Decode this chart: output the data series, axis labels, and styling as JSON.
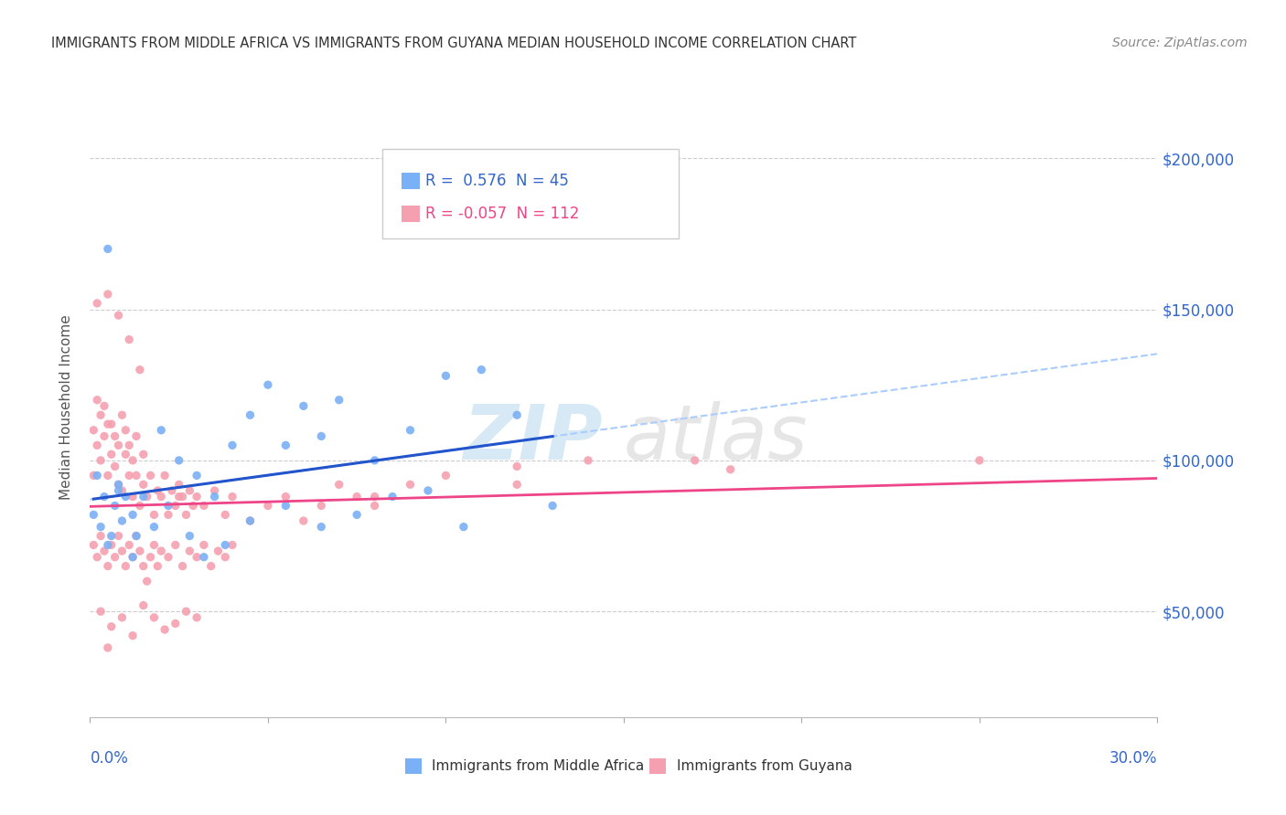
{
  "title": "IMMIGRANTS FROM MIDDLE AFRICA VS IMMIGRANTS FROM GUYANA MEDIAN HOUSEHOLD INCOME CORRELATION CHART",
  "source": "Source: ZipAtlas.com",
  "ylabel": "Median Household Income",
  "xlim": [
    0.0,
    0.3
  ],
  "ylim": [
    15000,
    220000
  ],
  "yticks": [
    50000,
    100000,
    150000,
    200000
  ],
  "ytick_labels": [
    "$50,000",
    "$100,000",
    "$150,000",
    "$200,000"
  ],
  "xtick_left_label": "0.0%",
  "xtick_right_label": "30.0%",
  "blue_R": 0.576,
  "blue_N": 45,
  "pink_R": -0.057,
  "pink_N": 112,
  "blue_label": "Immigrants from Middle Africa",
  "pink_label": "Immigrants from Guyana",
  "blue_scatter_color": "#7ab0f5",
  "pink_scatter_color": "#f5a0b0",
  "blue_line_color": "#2255cc",
  "blue_dash_color": "#aaccff",
  "pink_line_color": "#ee4488",
  "title_color": "#333333",
  "source_color": "#888888",
  "axis_color": "#3366cc",
  "grid_color": "#cccccc",
  "watermark_zip_color": "#b8d8f0",
  "watermark_atlas_color": "#c8c8c8",
  "legend_border_color": "#cccccc",
  "background_color": "#ffffff",
  "blue_scatter_x": [
    0.001,
    0.002,
    0.003,
    0.004,
    0.005,
    0.006,
    0.007,
    0.008,
    0.009,
    0.01,
    0.012,
    0.013,
    0.015,
    0.02,
    0.025,
    0.03,
    0.035,
    0.04,
    0.045,
    0.05,
    0.055,
    0.06,
    0.065,
    0.07,
    0.08,
    0.09,
    0.1,
    0.11,
    0.12,
    0.13,
    0.005,
    0.008,
    0.012,
    0.018,
    0.022,
    0.028,
    0.032,
    0.038,
    0.045,
    0.055,
    0.065,
    0.075,
    0.085,
    0.095,
    0.105
  ],
  "blue_scatter_y": [
    82000,
    95000,
    78000,
    88000,
    170000,
    75000,
    85000,
    92000,
    80000,
    88000,
    82000,
    75000,
    88000,
    110000,
    100000,
    95000,
    88000,
    105000,
    115000,
    125000,
    105000,
    118000,
    108000,
    120000,
    100000,
    110000,
    128000,
    130000,
    115000,
    85000,
    72000,
    90000,
    68000,
    78000,
    85000,
    75000,
    68000,
    72000,
    80000,
    85000,
    78000,
    82000,
    88000,
    90000,
    78000
  ],
  "pink_scatter_x": [
    0.001,
    0.001,
    0.002,
    0.002,
    0.003,
    0.003,
    0.004,
    0.004,
    0.005,
    0.005,
    0.006,
    0.006,
    0.007,
    0.007,
    0.008,
    0.008,
    0.009,
    0.009,
    0.01,
    0.01,
    0.011,
    0.011,
    0.012,
    0.012,
    0.013,
    0.013,
    0.014,
    0.015,
    0.015,
    0.016,
    0.017,
    0.018,
    0.019,
    0.02,
    0.021,
    0.022,
    0.023,
    0.024,
    0.025,
    0.026,
    0.027,
    0.028,
    0.029,
    0.03,
    0.032,
    0.035,
    0.038,
    0.04,
    0.045,
    0.05,
    0.055,
    0.06,
    0.065,
    0.07,
    0.075,
    0.08,
    0.09,
    0.1,
    0.12,
    0.14,
    0.001,
    0.002,
    0.003,
    0.004,
    0.005,
    0.006,
    0.007,
    0.008,
    0.009,
    0.01,
    0.011,
    0.012,
    0.013,
    0.014,
    0.015,
    0.016,
    0.017,
    0.018,
    0.019,
    0.02,
    0.022,
    0.024,
    0.026,
    0.028,
    0.03,
    0.032,
    0.034,
    0.036,
    0.038,
    0.04,
    0.003,
    0.006,
    0.009,
    0.012,
    0.015,
    0.018,
    0.021,
    0.024,
    0.027,
    0.03,
    0.002,
    0.005,
    0.008,
    0.011,
    0.014,
    0.17,
    0.25,
    0.005,
    0.025,
    0.18,
    0.08,
    0.12
  ],
  "pink_scatter_y": [
    95000,
    110000,
    120000,
    105000,
    115000,
    100000,
    108000,
    118000,
    112000,
    95000,
    102000,
    112000,
    98000,
    108000,
    92000,
    105000,
    115000,
    90000,
    102000,
    110000,
    95000,
    105000,
    88000,
    100000,
    95000,
    108000,
    85000,
    92000,
    102000,
    88000,
    95000,
    82000,
    90000,
    88000,
    95000,
    82000,
    90000,
    85000,
    92000,
    88000,
    82000,
    90000,
    85000,
    88000,
    85000,
    90000,
    82000,
    88000,
    80000,
    85000,
    88000,
    80000,
    85000,
    92000,
    88000,
    85000,
    92000,
    95000,
    98000,
    100000,
    72000,
    68000,
    75000,
    70000,
    65000,
    72000,
    68000,
    75000,
    70000,
    65000,
    72000,
    68000,
    75000,
    70000,
    65000,
    60000,
    68000,
    72000,
    65000,
    70000,
    68000,
    72000,
    65000,
    70000,
    68000,
    72000,
    65000,
    70000,
    68000,
    72000,
    50000,
    45000,
    48000,
    42000,
    52000,
    48000,
    44000,
    46000,
    50000,
    48000,
    152000,
    155000,
    148000,
    140000,
    130000,
    100000,
    100000,
    38000,
    88000,
    97000,
    88000,
    92000
  ]
}
